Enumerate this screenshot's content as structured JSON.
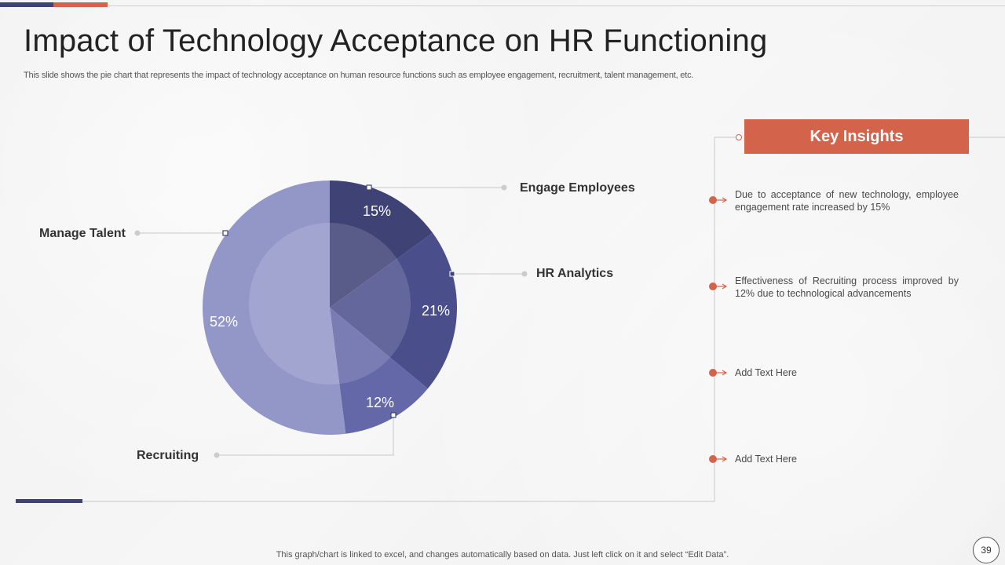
{
  "slide": {
    "title": "Impact of Technology Acceptance on HR Functioning",
    "subtitle": "This slide shows the pie chart that represents the impact of technology acceptance on human resource functions such as employee engagement, recruitment, talent management, etc.",
    "footer_note": "This graph/chart is linked to excel, and changes automatically based on data. Just left click on it and select “Edit Data”.",
    "page_number": "39"
  },
  "colors": {
    "accent": "#d4634c",
    "navy": "#3e4372",
    "slice_engage": "#3e4275",
    "slice_hr": "#4a4f8c",
    "slice_recruit": "#6468a8",
    "slice_talent": "#9397c7"
  },
  "insights": {
    "header": "Key Insights",
    "items": [
      "Due to acceptance of new technology, employee engagement rate increased by 15%",
      "Effectiveness of Recruiting process improved by 12% due to technological advancements",
      "Add Text Here",
      "Add Text Here"
    ]
  },
  "chart_data": {
    "type": "pie",
    "title": "",
    "labels": [
      "Engage Employees",
      "HR Analytics",
      "Recruiting",
      "Manage Talent"
    ],
    "values": [
      15,
      21,
      12,
      52
    ],
    "value_labels": [
      "15%",
      "21%",
      "12%",
      "52%"
    ],
    "start": "12 o'clock, clockwise"
  }
}
